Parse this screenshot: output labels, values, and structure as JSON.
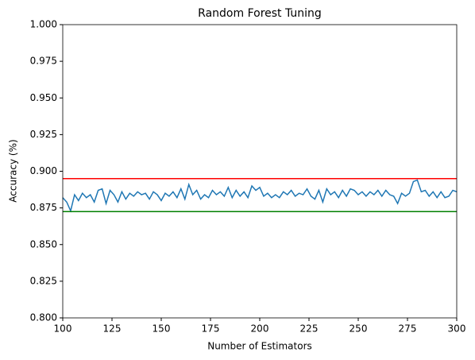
{
  "chart_data": {
    "type": "line",
    "title": "Random Forest Tuning",
    "xlabel": "Number of Estimators",
    "ylabel": "Accuracy (%)",
    "x": [
      100,
      102,
      104,
      106,
      108,
      110,
      112,
      114,
      116,
      118,
      120,
      122,
      124,
      126,
      128,
      130,
      132,
      134,
      136,
      138,
      140,
      142,
      144,
      146,
      148,
      150,
      152,
      154,
      156,
      158,
      160,
      162,
      164,
      166,
      168,
      170,
      172,
      174,
      176,
      178,
      180,
      182,
      184,
      186,
      188,
      190,
      192,
      194,
      196,
      198,
      200,
      202,
      204,
      206,
      208,
      210,
      212,
      214,
      216,
      218,
      220,
      222,
      224,
      226,
      228,
      230,
      232,
      234,
      236,
      238,
      240,
      242,
      244,
      246,
      248,
      250,
      252,
      254,
      256,
      258,
      260,
      262,
      264,
      266,
      268,
      270,
      272,
      274,
      276,
      278,
      280,
      282,
      284,
      286,
      288,
      290,
      292,
      294,
      296,
      298,
      300
    ],
    "series": [
      {
        "color": "#1f77b4",
        "values": [
          0.882,
          0.879,
          0.873,
          0.884,
          0.88,
          0.885,
          0.882,
          0.884,
          0.879,
          0.887,
          0.888,
          0.878,
          0.887,
          0.884,
          0.879,
          0.886,
          0.881,
          0.885,
          0.883,
          0.886,
          0.884,
          0.885,
          0.881,
          0.886,
          0.884,
          0.88,
          0.885,
          0.883,
          0.886,
          0.882,
          0.888,
          0.881,
          0.891,
          0.884,
          0.887,
          0.881,
          0.884,
          0.882,
          0.887,
          0.884,
          0.886,
          0.883,
          0.889,
          0.882,
          0.887,
          0.883,
          0.886,
          0.882,
          0.89,
          0.887,
          0.889,
          0.883,
          0.885,
          0.882,
          0.884,
          0.882,
          0.886,
          0.884,
          0.887,
          0.883,
          0.885,
          0.884,
          0.888,
          0.883,
          0.881,
          0.887,
          0.879,
          0.888,
          0.884,
          0.886,
          0.882,
          0.887,
          0.883,
          0.888,
          0.887,
          0.884,
          0.886,
          0.883,
          0.886,
          0.884,
          0.887,
          0.883,
          0.887,
          0.884,
          0.883,
          0.878,
          0.885,
          0.883,
          0.885,
          0.893,
          0.894,
          0.886,
          0.887,
          0.883,
          0.886,
          0.882,
          0.886,
          0.882,
          0.883,
          0.887,
          0.886
        ]
      }
    ],
    "hlines": [
      {
        "value": 0.895,
        "color": "red"
      },
      {
        "value": 0.8725,
        "color": "green"
      }
    ],
    "xlim": [
      100,
      300
    ],
    "xticks": [
      100,
      125,
      150,
      175,
      200,
      225,
      250,
      275,
      300
    ],
    "ylim": [
      0.8,
      1.0
    ],
    "yticks": [
      {
        "value": 0.8,
        "label": "0.800"
      },
      0.825,
      {
        "value": 0.85,
        "label": "0.850"
      },
      0.875,
      {
        "value": 0.9,
        "label": "0.900"
      },
      0.925,
      {
        "value": 0.95,
        "label": "0.950"
      },
      0.975,
      {
        "value": 1.0,
        "label": "1.000"
      }
    ]
  }
}
